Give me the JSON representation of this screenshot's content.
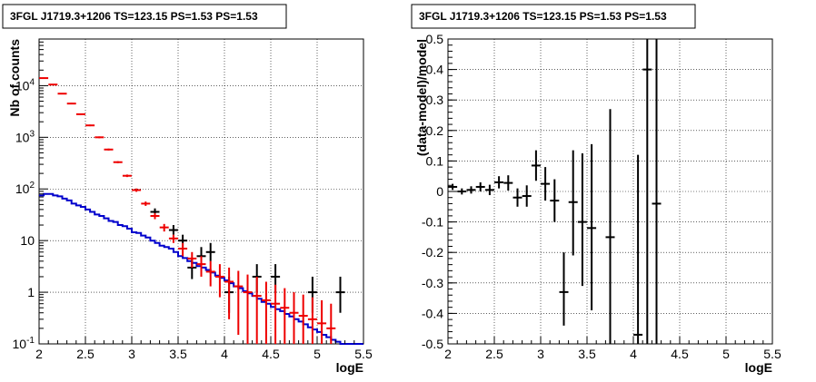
{
  "colors": {
    "counts": "#000000",
    "model": "#ee0000",
    "background": "#0000cc",
    "grid": "#000000"
  },
  "chart_data": [
    {
      "type": "scatter",
      "title": "3FGL J1719.3+1206 TS=123.15 PS=1.53 PS=1.53",
      "xlabel": "logE",
      "ylabel": "Nb of counts",
      "xlim": [
        2,
        5.5
      ],
      "ylim": [
        0.1,
        80000
      ],
      "yscale": "log",
      "grid": true,
      "x_ticks": [
        "2",
        "2.5",
        "3",
        "3.5",
        "4",
        "4.5",
        "5",
        "5.5"
      ],
      "y_ticks": [
        {
          "value": 0.1,
          "base": "10",
          "exp": "-1"
        },
        {
          "value": 1,
          "base": "1",
          "exp": ""
        },
        {
          "value": 10,
          "base": "10",
          "exp": ""
        },
        {
          "value": 100,
          "base": "10",
          "exp": "2"
        },
        {
          "value": 1000,
          "base": "10",
          "exp": "3"
        },
        {
          "value": 10000,
          "base": "10",
          "exp": "4"
        }
      ],
      "series": [
        {
          "name": "",
          "style": "step",
          "color": "#0000cc",
          "x": [
            2.0,
            2.05,
            2.1,
            2.15,
            2.2,
            2.25,
            2.3,
            2.35,
            2.4,
            2.45,
            2.5,
            2.55,
            2.6,
            2.65,
            2.7,
            2.75,
            2.8,
            2.85,
            2.9,
            2.95,
            3.0,
            3.05,
            3.1,
            3.15,
            3.2,
            3.25,
            3.3,
            3.35,
            3.4,
            3.45,
            3.5,
            3.55,
            3.6,
            3.65,
            3.7,
            3.75,
            3.8,
            3.85,
            3.9,
            3.95,
            4.0,
            4.05,
            4.1,
            4.15,
            4.2,
            4.25,
            4.3,
            4.35,
            4.4,
            4.45,
            4.5,
            4.55,
            4.6,
            4.65,
            4.7,
            4.75,
            4.8,
            4.85,
            4.9,
            4.95,
            5.0,
            5.05,
            5.1,
            5.15,
            5.2,
            5.25,
            5.3,
            5.35,
            5.4,
            5.45,
            5.5
          ],
          "y": [
            75,
            80,
            80,
            75,
            72,
            65,
            60,
            52,
            48,
            45,
            40,
            36,
            32,
            30,
            27,
            24,
            23,
            20,
            19,
            17,
            14.5,
            14,
            12.5,
            11.5,
            10,
            9,
            8,
            7.5,
            7,
            6,
            5,
            4.6,
            4,
            3.7,
            3.2,
            3,
            2.7,
            2.4,
            2.1,
            1.9,
            1.7,
            1.5,
            1.3,
            1.2,
            1.05,
            0.95,
            0.85,
            0.75,
            0.65,
            0.6,
            0.52,
            0.47,
            0.43,
            0.38,
            0.34,
            0.3,
            0.27,
            0.24,
            0.21,
            0.19,
            0.17,
            0.15,
            0.135,
            0.12,
            0.11,
            0.1,
            0.1,
            0.1,
            0.1,
            0.1,
            0.1
          ]
        },
        {
          "name": "",
          "style": "errorbar",
          "color": "#000000",
          "points": [
            {
              "x": 3.25,
              "y": 36,
              "lo": 30,
              "hi": 42
            },
            {
              "x": 3.45,
              "y": 16,
              "lo": 13,
              "hi": 20
            },
            {
              "x": 3.55,
              "y": 10,
              "lo": 7.5,
              "hi": 13
            },
            {
              "x": 3.65,
              "y": 3,
              "lo": 1.8,
              "hi": 4.5
            },
            {
              "x": 3.75,
              "y": 5,
              "lo": 3,
              "hi": 7.5
            },
            {
              "x": 3.85,
              "y": 6,
              "lo": 4,
              "hi": 9
            },
            {
              "x": 4.05,
              "y": 1,
              "lo": 0.4,
              "hi": 2
            },
            {
              "x": 4.35,
              "y": 2,
              "lo": 1,
              "hi": 3.5
            },
            {
              "x": 4.55,
              "y": 2,
              "lo": 1,
              "hi": 3.5
            },
            {
              "x": 4.95,
              "y": 1,
              "lo": 0.4,
              "hi": 2
            },
            {
              "x": 5.25,
              "y": 1,
              "lo": 0.4,
              "hi": 2
            }
          ]
        },
        {
          "name": "",
          "style": "errorbar",
          "color": "#ee0000",
          "points": [
            {
              "x": 2.05,
              "y": 14000,
              "lo": 13600,
              "hi": 14400
            },
            {
              "x": 2.15,
              "y": 10500,
              "lo": 10200,
              "hi": 10800
            },
            {
              "x": 2.25,
              "y": 7000,
              "lo": 6800,
              "hi": 7200
            },
            {
              "x": 2.35,
              "y": 4500,
              "lo": 4350,
              "hi": 4650
            },
            {
              "x": 2.45,
              "y": 2800,
              "lo": 2700,
              "hi": 2900
            },
            {
              "x": 2.55,
              "y": 1700,
              "lo": 1640,
              "hi": 1760
            },
            {
              "x": 2.65,
              "y": 1000,
              "lo": 960,
              "hi": 1040
            },
            {
              "x": 2.75,
              "y": 580,
              "lo": 555,
              "hi": 605
            },
            {
              "x": 2.85,
              "y": 330,
              "lo": 315,
              "hi": 345
            },
            {
              "x": 2.95,
              "y": 180,
              "lo": 170,
              "hi": 190
            },
            {
              "x": 3.05,
              "y": 95,
              "lo": 88,
              "hi": 102
            },
            {
              "x": 3.15,
              "y": 52,
              "lo": 47,
              "hi": 57
            },
            {
              "x": 3.25,
              "y": 30,
              "lo": 26,
              "hi": 34
            },
            {
              "x": 3.35,
              "y": 18,
              "lo": 15,
              "hi": 21
            },
            {
              "x": 3.45,
              "y": 11,
              "lo": 9,
              "hi": 13
            },
            {
              "x": 3.55,
              "y": 7,
              "lo": 5,
              "hi": 9
            },
            {
              "x": 3.65,
              "y": 4.5,
              "lo": 3,
              "hi": 6
            },
            {
              "x": 3.75,
              "y": 3.5,
              "lo": 2,
              "hi": 5
            },
            {
              "x": 3.85,
              "y": 2.5,
              "lo": 1.3,
              "hi": 4
            },
            {
              "x": 3.95,
              "y": 2,
              "lo": 0.8,
              "hi": 3.5
            },
            {
              "x": 4.05,
              "y": 1.6,
              "lo": 0.3,
              "hi": 3
            },
            {
              "x": 4.15,
              "y": 1.3,
              "lo": 0.15,
              "hi": 2.6
            },
            {
              "x": 4.25,
              "y": 1,
              "lo": 0.1,
              "hi": 2.2
            },
            {
              "x": 4.35,
              "y": 0.85,
              "lo": 0.1,
              "hi": 2
            },
            {
              "x": 4.45,
              "y": 0.7,
              "lo": 0.1,
              "hi": 1.6
            },
            {
              "x": 4.55,
              "y": 0.6,
              "lo": 0.1,
              "hi": 1.4
            },
            {
              "x": 4.65,
              "y": 0.5,
              "lo": 0.1,
              "hi": 1.2
            },
            {
              "x": 4.75,
              "y": 0.4,
              "lo": 0.1,
              "hi": 1
            },
            {
              "x": 4.85,
              "y": 0.35,
              "lo": 0.1,
              "hi": 0.9
            },
            {
              "x": 4.95,
              "y": 0.3,
              "lo": 0.1,
              "hi": 0.8
            },
            {
              "x": 5.05,
              "y": 0.25,
              "lo": 0.1,
              "hi": 0.7
            },
            {
              "x": 5.15,
              "y": 0.2,
              "lo": 0.1,
              "hi": 0.6
            }
          ]
        }
      ]
    },
    {
      "type": "scatter",
      "title": "3FGL J1719.3+1206 TS=123.15 PS=1.53 PS=1.53",
      "xlabel": "logE",
      "ylabel": "(data-model)/model",
      "xlim": [
        2,
        5.5
      ],
      "ylim": [
        -0.5,
        0.5
      ],
      "grid": true,
      "x_ticks": [
        "2",
        "2.5",
        "3",
        "3.5",
        "4",
        "4.5",
        "5",
        "5.5"
      ],
      "y_ticks": [
        "-0.5",
        "-0.4",
        "-0.3",
        "-0.2",
        "-0.1",
        "0",
        "0.1",
        "0.2",
        "0.3",
        "0.4",
        "0.5"
      ],
      "series": [
        {
          "name": "",
          "style": "errorbar",
          "color": "#000000",
          "points": [
            {
              "x": 2.05,
              "y": 0.015,
              "lo": 0.005,
              "hi": 0.025
            },
            {
              "x": 2.15,
              "y": 0.0,
              "lo": -0.01,
              "hi": 0.01
            },
            {
              "x": 2.25,
              "y": 0.005,
              "lo": -0.007,
              "hi": 0.017
            },
            {
              "x": 2.35,
              "y": 0.015,
              "lo": 0.0,
              "hi": 0.03
            },
            {
              "x": 2.45,
              "y": 0.005,
              "lo": -0.012,
              "hi": 0.022
            },
            {
              "x": 2.55,
              "y": 0.03,
              "lo": 0.01,
              "hi": 0.05
            },
            {
              "x": 2.65,
              "y": 0.028,
              "lo": 0.003,
              "hi": 0.053
            },
            {
              "x": 2.75,
              "y": -0.02,
              "lo": -0.05,
              "hi": 0.01
            },
            {
              "x": 2.85,
              "y": -0.015,
              "lo": -0.05,
              "hi": 0.02
            },
            {
              "x": 2.95,
              "y": 0.085,
              "lo": 0.035,
              "hi": 0.135
            },
            {
              "x": 3.05,
              "y": 0.025,
              "lo": -0.03,
              "hi": 0.08
            },
            {
              "x": 3.15,
              "y": -0.03,
              "lo": -0.1,
              "hi": 0.04
            },
            {
              "x": 3.25,
              "y": -0.33,
              "lo": -0.44,
              "hi": -0.2
            },
            {
              "x": 3.35,
              "y": -0.035,
              "lo": -0.21,
              "hi": 0.135
            },
            {
              "x": 3.45,
              "y": -0.1,
              "lo": -0.31,
              "hi": 0.125
            },
            {
              "x": 3.55,
              "y": -0.12,
              "lo": -0.39,
              "hi": 0.155
            },
            {
              "x": 3.75,
              "y": -0.15,
              "lo": -0.5,
              "hi": 0.27
            },
            {
              "x": 4.05,
              "y": -0.47,
              "lo": -0.5,
              "hi": 0.12
            },
            {
              "x": 4.15,
              "y": 0.4,
              "lo": -0.5,
              "hi": 0.5
            },
            {
              "x": 4.25,
              "y": -0.04,
              "lo": -0.5,
              "hi": 0.5
            }
          ]
        }
      ]
    }
  ]
}
